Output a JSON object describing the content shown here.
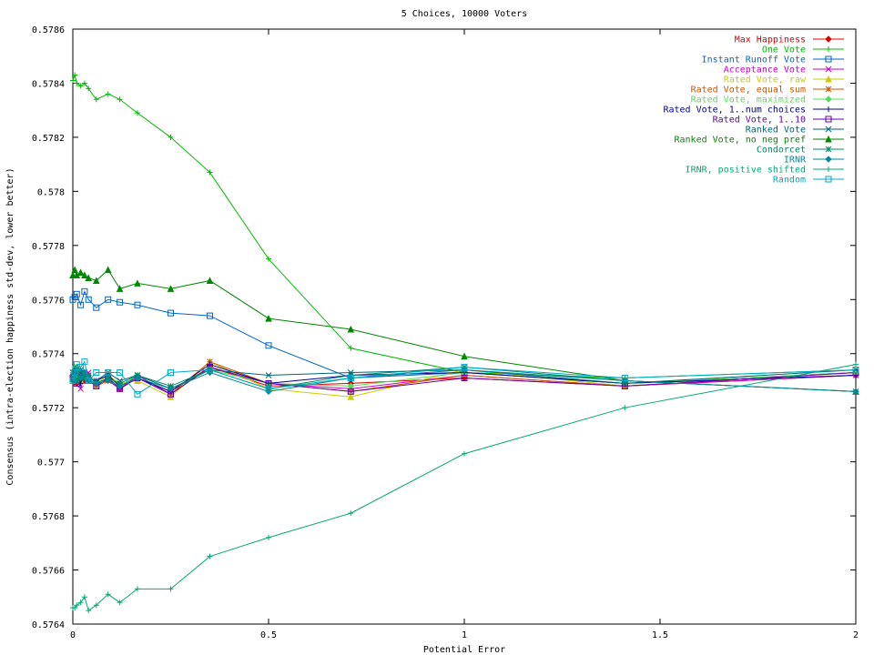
{
  "chart_data": {
    "type": "line",
    "title": "5 Choices, 10000 Voters",
    "xlabel": "Potential Error",
    "ylabel": "Consensus (intra-election happiness std-dev, lower better)",
    "xlim": [
      0,
      2
    ],
    "ylim": [
      0.5764,
      0.5786
    ],
    "xticks": [
      0,
      0.5,
      1,
      1.5,
      2
    ],
    "xtick_labels": [
      "0",
      "0.5",
      "1",
      "1.5",
      "2"
    ],
    "yticks": [
      0.5764,
      0.5766,
      0.5768,
      0.577,
      0.5772,
      0.5774,
      0.5776,
      0.5778,
      0.578,
      0.5782,
      0.5784,
      0.5786
    ],
    "ytick_labels": [
      "0.5764",
      "0.5766",
      "0.5768",
      "0.577",
      "0.5772",
      "0.5774",
      "0.5776",
      "0.5778",
      "0.578",
      "0.5782",
      "0.5784",
      "0.5786"
    ],
    "grid": false,
    "legend_position": "top-right",
    "x": [
      0,
      0.005,
      0.01,
      0.02,
      0.03,
      0.04,
      0.06,
      0.09,
      0.12,
      0.165,
      0.25,
      0.35,
      0.5,
      0.71,
      1,
      1.41,
      2
    ],
    "series": [
      {
        "name": "Max Happiness",
        "color": "#dd0000",
        "marker": "diamond",
        "values": [
          0.57731,
          0.57733,
          0.57729,
          0.57733,
          0.5773,
          0.57731,
          0.57729,
          0.57731,
          0.57727,
          0.57731,
          0.57726,
          0.57735,
          0.57728,
          0.57729,
          0.57731,
          0.57728,
          0.57732
        ]
      },
      {
        "name": "One Vote",
        "color": "#00bb00",
        "marker": "plus",
        "values": [
          0.57841,
          0.57843,
          0.5784,
          0.57839,
          0.5784,
          0.57838,
          0.57834,
          0.57836,
          0.57834,
          0.57829,
          0.5782,
          0.57807,
          0.57775,
          0.57742,
          0.57733,
          0.57731,
          0.57734
        ]
      },
      {
        "name": "Instant Runoff Vote",
        "color": "#0066cc",
        "marker": "square",
        "values": [
          0.5776,
          0.57761,
          0.57762,
          0.57758,
          0.57763,
          0.5776,
          0.57757,
          0.5776,
          0.57759,
          0.57758,
          0.57755,
          0.57754,
          0.57743,
          0.57731,
          0.57733,
          0.57729,
          0.57733
        ]
      },
      {
        "name": "Acceptance Vote",
        "color": "#cc00cc",
        "marker": "cross",
        "values": [
          0.57732,
          0.5773,
          0.57734,
          0.57727,
          0.57732,
          0.57733,
          0.57728,
          0.5773,
          0.57727,
          0.57732,
          0.57725,
          0.57735,
          0.57729,
          0.57727,
          0.57732,
          0.57728,
          0.57732
        ]
      },
      {
        "name": "Rated Vote, raw",
        "color": "#cccc00",
        "marker": "triangle",
        "values": [
          0.57733,
          0.57731,
          0.57735,
          0.5773,
          0.57733,
          0.57731,
          0.57729,
          0.57732,
          0.57729,
          0.5773,
          0.57724,
          0.57737,
          0.57727,
          0.57724,
          0.57734,
          0.57728,
          0.57733
        ]
      },
      {
        "name": "Rated Vote, equal sum",
        "color": "#cc5500",
        "marker": "star",
        "values": [
          0.57731,
          0.57733,
          0.5773,
          0.57734,
          0.57731,
          0.57732,
          0.57728,
          0.5773,
          0.57728,
          0.57731,
          0.57725,
          0.57737,
          0.57729,
          0.57726,
          0.57732,
          0.57728,
          0.57733
        ]
      },
      {
        "name": "Rated Vote, maximized",
        "color": "#55dd55",
        "marker": "diamond",
        "values": [
          0.57732,
          0.57735,
          0.57731,
          0.57733,
          0.57732,
          0.57731,
          0.57729,
          0.57731,
          0.57728,
          0.57732,
          0.57727,
          0.57734,
          0.57729,
          0.57728,
          0.57733,
          0.57729,
          0.57733
        ]
      },
      {
        "name": "Rated Vote, 1..num choices",
        "color": "#000099",
        "marker": "plus",
        "values": [
          0.57732,
          0.57731,
          0.57734,
          0.57729,
          0.57733,
          0.57731,
          0.5773,
          0.57732,
          0.57728,
          0.57731,
          0.57726,
          0.57736,
          0.57729,
          0.57732,
          0.57733,
          0.57729,
          0.57732
        ]
      },
      {
        "name": "Rated Vote, 1..10",
        "color": "#6600aa",
        "marker": "square",
        "values": [
          0.57731,
          0.57733,
          0.57729,
          0.57733,
          0.57732,
          0.5773,
          0.57728,
          0.57731,
          0.57727,
          0.57731,
          0.57725,
          0.57735,
          0.57729,
          0.57726,
          0.57731,
          0.57728,
          0.57733
        ]
      },
      {
        "name": "Ranked Vote",
        "color": "#006677",
        "marker": "cross",
        "values": [
          0.57733,
          0.57735,
          0.57732,
          0.57731,
          0.57733,
          0.57731,
          0.5773,
          0.57733,
          0.5773,
          0.57732,
          0.57727,
          0.57734,
          0.57732,
          0.57733,
          0.57734,
          0.57729,
          0.57734
        ]
      },
      {
        "name": "Ranked Vote, no neg pref",
        "color": "#008800",
        "marker": "triangle",
        "values": [
          0.57769,
          0.57771,
          0.57769,
          0.5777,
          0.57769,
          0.57768,
          0.57767,
          0.57771,
          0.57764,
          0.57766,
          0.57764,
          0.57767,
          0.57753,
          0.57749,
          0.57739,
          0.5773,
          0.57726
        ]
      },
      {
        "name": "Condorcet",
        "color": "#008866",
        "marker": "star",
        "values": [
          0.57731,
          0.57733,
          0.5773,
          0.57734,
          0.57731,
          0.57732,
          0.57729,
          0.57731,
          0.57729,
          0.57732,
          0.57728,
          0.57734,
          0.57727,
          0.57732,
          0.57735,
          0.5773,
          0.57726
        ]
      },
      {
        "name": "IRNR",
        "color": "#008899",
        "marker": "diamond",
        "values": [
          0.5773,
          0.57732,
          0.57734,
          0.57731,
          0.57733,
          0.5773,
          0.57729,
          0.5773,
          0.57728,
          0.57731,
          0.57727,
          0.57733,
          0.57726,
          0.57731,
          0.57734,
          0.5773,
          0.57726
        ]
      },
      {
        "name": "IRNR, positive shifted",
        "color": "#00aa77",
        "marker": "plus",
        "values": [
          0.57646,
          0.57646,
          0.57647,
          0.57648,
          0.5765,
          0.57645,
          0.57647,
          0.57651,
          0.57648,
          0.57653,
          0.57653,
          0.57665,
          0.57672,
          0.57681,
          0.57703,
          0.5772,
          0.57736
        ]
      },
      {
        "name": "Random",
        "color": "#00aacc",
        "marker": "square",
        "values": [
          0.5773,
          0.57733,
          0.57736,
          0.57735,
          0.57737,
          0.5773,
          0.57733,
          0.57733,
          0.57733,
          0.57725,
          0.57733,
          0.57734,
          0.57727,
          0.57731,
          0.57735,
          0.57731,
          0.57734
        ]
      }
    ]
  }
}
